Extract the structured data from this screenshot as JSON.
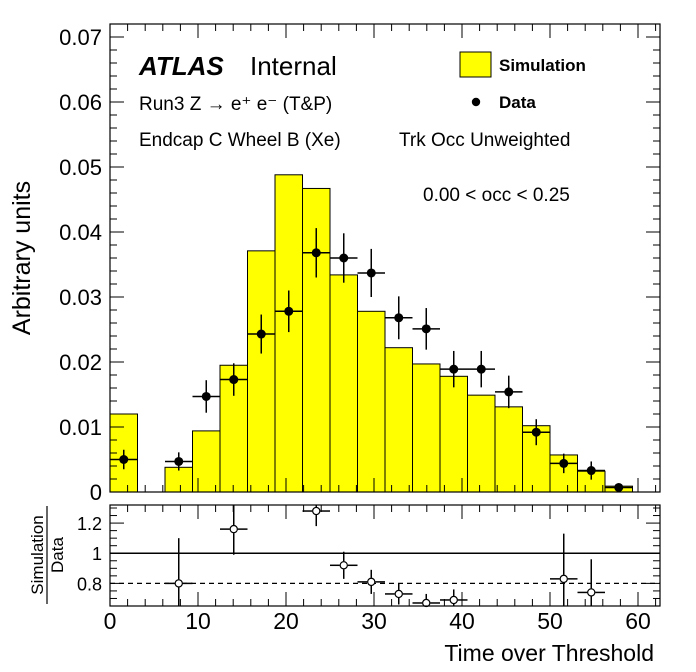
{
  "chart_data": {
    "type": "bar",
    "main": {
      "ylabel": "Arbitrary units",
      "ylim": [
        0,
        0.072
      ],
      "yticks": [
        "0",
        "0.01",
        "0.02",
        "0.03",
        "0.04",
        "0.05",
        "0.06",
        "0.07"
      ],
      "atlas_label": "ATLAS",
      "atlas_sub": "Internal",
      "lines": [
        "Run3 Z → e⁺ e⁻ (T&P)",
        "Endcap C Wheel B (Xe)",
        "Trk Occ Unweighted",
        "0.00 < occ < 0.25"
      ],
      "legend": [
        {
          "label": "Simulation",
          "color": "#ffff00"
        },
        {
          "label": "Data",
          "color": "#000000"
        }
      ],
      "bin_width": 3.125,
      "series": [
        {
          "name": "Simulation",
          "style": "histogram",
          "x": [
            1.5625,
            4.6875,
            7.8125,
            10.9375,
            14.0625,
            17.1875,
            20.3125,
            23.4375,
            26.5625,
            29.6875,
            32.8125,
            35.9375,
            39.0625,
            42.1875,
            45.3125,
            48.4375,
            51.5625,
            54.6875,
            57.8125,
            60.9375
          ],
          "values": [
            0.012,
            0.0,
            0.0038,
            0.0094,
            0.0195,
            0.0371,
            0.0488,
            0.0467,
            0.0334,
            0.0278,
            0.0222,
            0.0197,
            0.0178,
            0.0149,
            0.0131,
            0.0102,
            0.0057,
            0.0032,
            0.0009,
            0.0
          ]
        },
        {
          "name": "Data",
          "style": "points",
          "x": [
            1.5625,
            7.8125,
            10.9375,
            14.0625,
            17.1875,
            20.3125,
            23.4375,
            26.5625,
            29.6875,
            32.8125,
            35.9375,
            39.0625,
            42.1875,
            45.3125,
            48.4375,
            51.5625,
            54.6875,
            57.8125
          ],
          "values": [
            0.005,
            0.0047,
            0.0147,
            0.0173,
            0.0243,
            0.0278,
            0.0368,
            0.036,
            0.0337,
            0.0268,
            0.0251,
            0.0189,
            0.0189,
            0.0154,
            0.0092,
            0.0044,
            0.0033,
            0.0007
          ],
          "errors": [
            0.0015,
            0.0014,
            0.0025,
            0.0025,
            0.003,
            0.0032,
            0.0038,
            0.0038,
            0.0037,
            0.0033,
            0.0032,
            0.0028,
            0.0028,
            0.0025,
            0.002,
            0.0015,
            0.0014,
            0.0006
          ]
        }
      ]
    },
    "ratio": {
      "ylabel_top": "Simulation",
      "ylabel_bottom": "Data",
      "ylim": [
        0.65,
        1.32
      ],
      "yticks": [
        "0.8",
        "1",
        "1.2"
      ],
      "reference_lines": [
        {
          "y": 1.0,
          "style": "solid"
        },
        {
          "y": 0.8,
          "style": "dashed"
        }
      ],
      "x": [
        7.8125,
        14.0625,
        23.4375,
        26.5625,
        29.6875,
        32.8125,
        35.9375,
        39.0625,
        51.5625,
        54.6875
      ],
      "values": [
        0.8,
        1.16,
        1.28,
        0.92,
        0.81,
        0.73,
        0.67,
        0.69,
        0.83,
        0.74
      ],
      "errors": [
        0.3,
        0.17,
        0.1,
        0.09,
        0.08,
        0.07,
        0.06,
        0.07,
        0.3,
        0.22
      ]
    },
    "xlabel": "Time over Threshold",
    "xlim": [
      0,
      62.5
    ],
    "xticks": [
      "0",
      "10",
      "20",
      "30",
      "40",
      "50",
      "60"
    ]
  }
}
